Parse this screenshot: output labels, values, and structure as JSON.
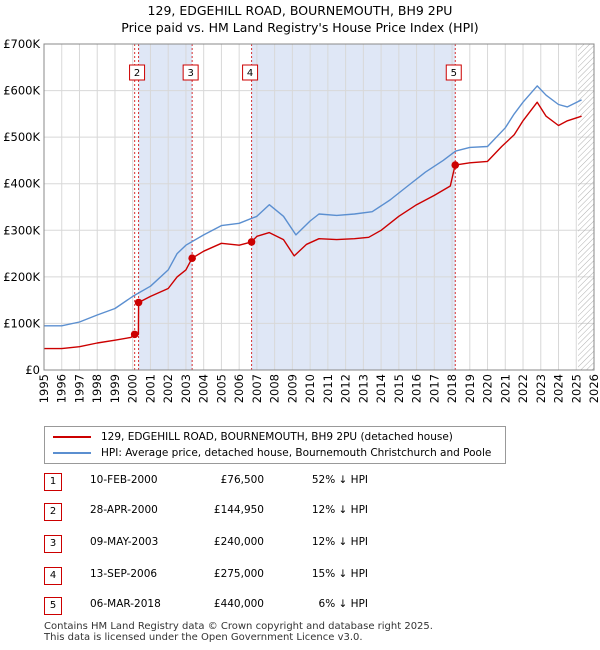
{
  "title_line1": "129, EDGEHILL ROAD, BOURNEMOUTH, BH9 2PU",
  "title_line2": "Price paid vs. HM Land Registry's House Price Index (HPI)",
  "colors": {
    "property": "#cc0000",
    "hpi": "#5b8fd0",
    "shade": "#dfe7f6",
    "grid": "#d8d8d8"
  },
  "chart_data": {
    "type": "line",
    "xlabel": "",
    "ylabel": "",
    "xlim": [
      1995,
      2026
    ],
    "ylim": [
      0,
      700000
    ],
    "y_ticks": [
      {
        "value": 0,
        "label": "£0"
      },
      {
        "value": 100000,
        "label": "£100K"
      },
      {
        "value": 200000,
        "label": "£200K"
      },
      {
        "value": 300000,
        "label": "£300K"
      },
      {
        "value": 400000,
        "label": "£400K"
      },
      {
        "value": 500000,
        "label": "£500K"
      },
      {
        "value": 600000,
        "label": "£600K"
      },
      {
        "value": 700000,
        "label": "£700K"
      }
    ],
    "x_ticks": [
      "1995",
      "1996",
      "1997",
      "1998",
      "1999",
      "2000",
      "2001",
      "2002",
      "2003",
      "2004",
      "2005",
      "2006",
      "2007",
      "2008",
      "2009",
      "2010",
      "2011",
      "2012",
      "2013",
      "2014",
      "2015",
      "2016",
      "2017",
      "2018",
      "2019",
      "2020",
      "2021",
      "2022",
      "2023",
      "2024",
      "2025",
      "2026"
    ],
    "shaded_periods": [
      [
        2000.33,
        2003.35
      ],
      [
        2006.7,
        2018.18
      ]
    ],
    "hatched_after": 2025.1,
    "series": [
      {
        "name": "129, EDGEHILL ROAD, BOURNEMOUTH, BH9 2PU (detached house)",
        "color": "#cc0000",
        "points": [
          [
            1995.0,
            46000
          ],
          [
            1996.0,
            46000
          ],
          [
            1997.0,
            50000
          ],
          [
            1998.0,
            58000
          ],
          [
            1999.0,
            64000
          ],
          [
            1999.9,
            70000
          ],
          [
            2000.11,
            76500
          ],
          [
            2000.32,
            76500
          ],
          [
            2000.33,
            144950
          ],
          [
            2001.0,
            158000
          ],
          [
            2002.0,
            175000
          ],
          [
            2002.5,
            200000
          ],
          [
            2003.0,
            215000
          ],
          [
            2003.35,
            240000
          ],
          [
            2004.0,
            255000
          ],
          [
            2005.0,
            272000
          ],
          [
            2006.0,
            268000
          ],
          [
            2006.7,
            275000
          ],
          [
            2007.0,
            287000
          ],
          [
            2007.7,
            295000
          ],
          [
            2008.5,
            280000
          ],
          [
            2009.1,
            245000
          ],
          [
            2009.8,
            270000
          ],
          [
            2010.5,
            282000
          ],
          [
            2011.5,
            280000
          ],
          [
            2012.5,
            282000
          ],
          [
            2013.3,
            285000
          ],
          [
            2014.0,
            300000
          ],
          [
            2015.0,
            330000
          ],
          [
            2016.0,
            355000
          ],
          [
            2017.0,
            375000
          ],
          [
            2017.9,
            395000
          ],
          [
            2018.17,
            440000
          ],
          [
            2019.0,
            445000
          ],
          [
            2020.0,
            448000
          ],
          [
            2020.8,
            480000
          ],
          [
            2021.5,
            505000
          ],
          [
            2022.0,
            535000
          ],
          [
            2022.8,
            575000
          ],
          [
            2023.3,
            545000
          ],
          [
            2024.0,
            525000
          ],
          [
            2024.5,
            535000
          ],
          [
            2025.3,
            545000
          ]
        ]
      },
      {
        "name": "HPI: Average price, detached house, Bournemouth Christchurch and Poole",
        "color": "#5b8fd0",
        "points": [
          [
            1995.0,
            95000
          ],
          [
            1996.0,
            95000
          ],
          [
            1997.0,
            103000
          ],
          [
            1998.0,
            118000
          ],
          [
            1999.0,
            132000
          ],
          [
            2000.0,
            158000
          ],
          [
            2001.0,
            180000
          ],
          [
            2002.0,
            215000
          ],
          [
            2002.5,
            250000
          ],
          [
            2003.0,
            268000
          ],
          [
            2004.0,
            290000
          ],
          [
            2005.0,
            310000
          ],
          [
            2006.0,
            315000
          ],
          [
            2007.0,
            330000
          ],
          [
            2007.7,
            355000
          ],
          [
            2008.5,
            330000
          ],
          [
            2009.2,
            290000
          ],
          [
            2010.0,
            320000
          ],
          [
            2010.5,
            335000
          ],
          [
            2011.5,
            332000
          ],
          [
            2012.5,
            335000
          ],
          [
            2013.5,
            340000
          ],
          [
            2014.5,
            365000
          ],
          [
            2015.5,
            395000
          ],
          [
            2016.5,
            425000
          ],
          [
            2017.5,
            450000
          ],
          [
            2018.2,
            470000
          ],
          [
            2019.0,
            478000
          ],
          [
            2020.0,
            480000
          ],
          [
            2021.0,
            520000
          ],
          [
            2021.5,
            550000
          ],
          [
            2022.0,
            575000
          ],
          [
            2022.8,
            610000
          ],
          [
            2023.3,
            590000
          ],
          [
            2024.0,
            570000
          ],
          [
            2024.5,
            565000
          ],
          [
            2025.3,
            580000
          ]
        ]
      }
    ],
    "sales": [
      {
        "id": "1",
        "year": 2000.11,
        "price": 76500,
        "show_label": false
      },
      {
        "id": "2",
        "year": 2000.33,
        "price": 144950,
        "show_label": true
      },
      {
        "id": "3",
        "year": 2003.35,
        "price": 240000,
        "show_label": true
      },
      {
        "id": "4",
        "year": 2006.7,
        "price": 275000,
        "show_label": true
      },
      {
        "id": "5",
        "year": 2018.18,
        "price": 440000,
        "show_label": true
      }
    ]
  },
  "legend": {
    "property_label": "129, EDGEHILL ROAD, BOURNEMOUTH, BH9 2PU (detached house)",
    "hpi_label": "HPI: Average price, detached house, Bournemouth Christchurch and Poole"
  },
  "sales_table": [
    {
      "id": "1",
      "date": "10-FEB-2000",
      "price": "£76,500",
      "hpi": "52% ↓ HPI"
    },
    {
      "id": "2",
      "date": "28-APR-2000",
      "price": "£144,950",
      "hpi": "12% ↓ HPI"
    },
    {
      "id": "3",
      "date": "09-MAY-2003",
      "price": "£240,000",
      "hpi": "12% ↓ HPI"
    },
    {
      "id": "4",
      "date": "13-SEP-2006",
      "price": "£275,000",
      "hpi": "15% ↓ HPI"
    },
    {
      "id": "5",
      "date": "06-MAR-2018",
      "price": "£440,000",
      "hpi": "6% ↓ HPI"
    }
  ],
  "footer": {
    "line1": "Contains HM Land Registry data © Crown copyright and database right 2025.",
    "line2": "This data is licensed under the Open Government Licence v3.0."
  }
}
